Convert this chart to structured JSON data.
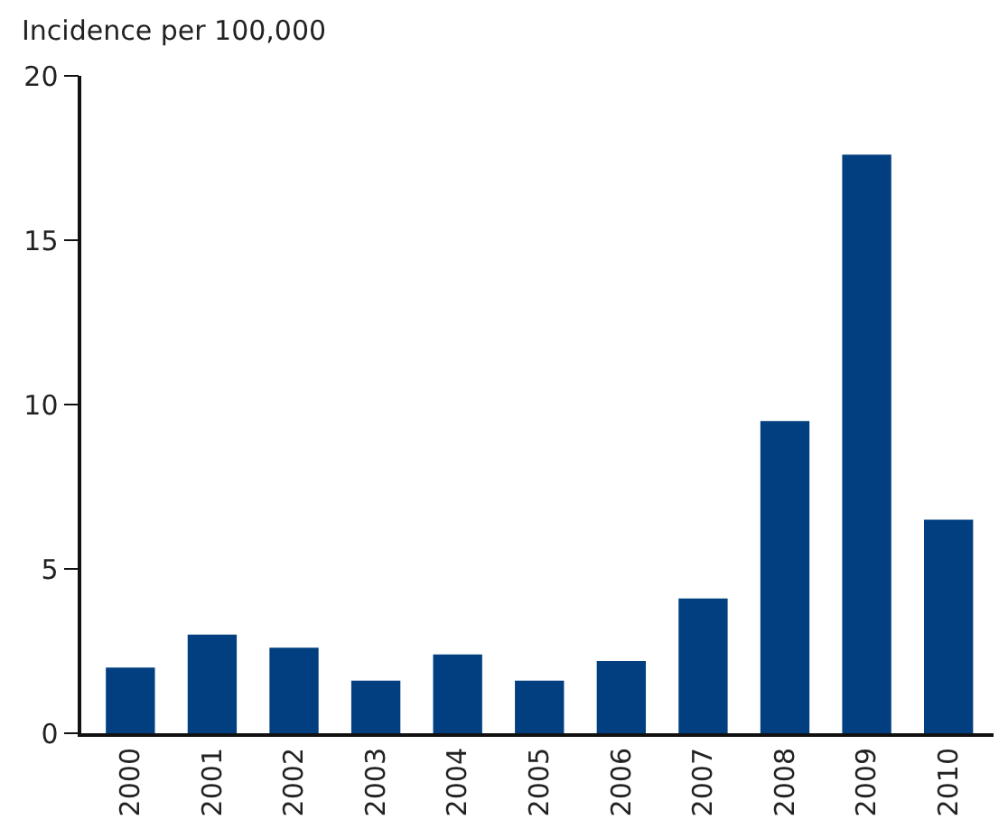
{
  "chart_data": {
    "type": "bar",
    "ylabel": "Incidence per 100,000",
    "categories": [
      "2000",
      "2001",
      "2002",
      "2003",
      "2004",
      "2005",
      "2006",
      "2007",
      "2008",
      "2009",
      "2010"
    ],
    "values": [
      2.0,
      3.0,
      2.6,
      1.6,
      2.4,
      1.6,
      2.2,
      4.1,
      9.5,
      17.6,
      6.5
    ],
    "color": "#023f80",
    "ylim": [
      0,
      20
    ],
    "yticks": [
      0,
      5,
      10,
      15,
      20
    ]
  }
}
